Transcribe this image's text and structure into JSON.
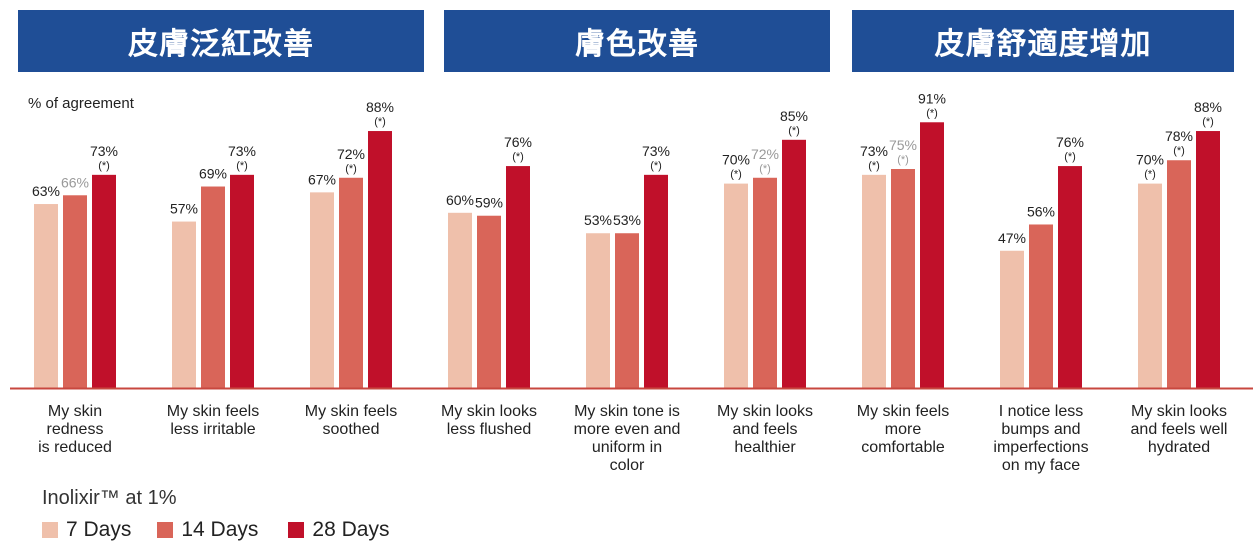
{
  "banners": [
    "皮膚泛紅改善",
    "膚色改善",
    "皮膚舒適度增加"
  ],
  "colors": {
    "banner": "#1f4e96",
    "d7": "#efc0ab",
    "d14": "#d96559",
    "d28": "#c0102a",
    "axis": "#c8473f"
  },
  "legend": {
    "title": "Inolixir™ at 1%",
    "items": [
      "7 Days",
      "14 Days",
      "28 Days"
    ]
  },
  "chart_data": {
    "type": "bar",
    "ylabel": "% of agreement",
    "ylim": [
      0,
      100
    ],
    "categories": [
      [
        "My skin",
        "redness",
        "is reduced"
      ],
      [
        "My skin feels",
        "less irritable"
      ],
      [
        "My skin feels",
        "soothed"
      ],
      [
        "My skin looks",
        "less flushed"
      ],
      [
        "My skin tone is",
        "more even and",
        "uniform in",
        "color"
      ],
      [
        "My skin looks",
        "and feels",
        "healthier"
      ],
      [
        "My skin feels",
        "more",
        "comfortable"
      ],
      [
        "I notice less",
        "bumps and",
        "imperfections",
        "on my face"
      ],
      [
        "My skin looks",
        "and feels well",
        "hydrated"
      ]
    ],
    "series": [
      {
        "name": "7 Days",
        "values": [
          63,
          57,
          67,
          60,
          53,
          70,
          73,
          47,
          70
        ],
        "labels": [
          "63%",
          "57%",
          "67%",
          "60%",
          "53%",
          "70%",
          "73%",
          "47%",
          "70%"
        ],
        "sig": [
          false,
          false,
          false,
          false,
          false,
          true,
          true,
          false,
          true
        ]
      },
      {
        "name": "14 Days",
        "values": [
          66,
          69,
          72,
          59,
          53,
          72,
          75,
          56,
          78
        ],
        "labels": [
          "66%",
          "69%",
          "72%",
          "59%",
          "53%",
          "72%",
          "75%",
          "56%",
          "78%"
        ],
        "sig": [
          false,
          false,
          true,
          false,
          false,
          true,
          true,
          false,
          true
        ]
      },
      {
        "name": "28 Days",
        "values": [
          73,
          73,
          88,
          76,
          73,
          85,
          91,
          76,
          88
        ],
        "labels": [
          "73%",
          "73%",
          "88%",
          "76%",
          "73%",
          "85%",
          "91%",
          "76%",
          "88%"
        ],
        "sig": [
          true,
          true,
          true,
          true,
          true,
          true,
          true,
          true,
          true
        ]
      }
    ],
    "sig_marker": "(*)"
  }
}
